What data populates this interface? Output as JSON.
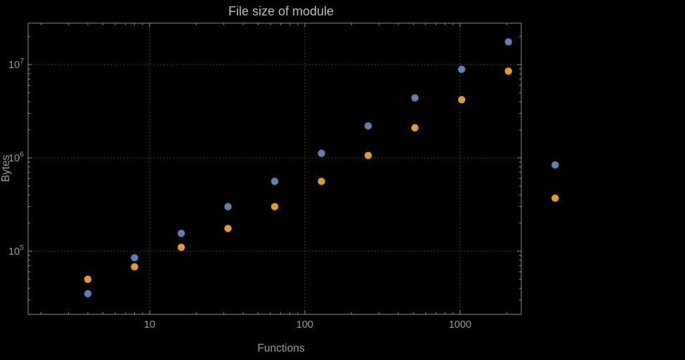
{
  "chart_data": {
    "type": "scatter",
    "title": "File size of module",
    "xlabel": "Functions",
    "ylabel": "Bytes",
    "xscale": "log",
    "yscale": "log",
    "xlim": [
      1.65,
      2480
    ],
    "ylim": [
      21000,
      27800000
    ],
    "x_ticks": [
      10,
      100,
      1000
    ],
    "x_tick_labels": [
      "10",
      "100",
      "1000"
    ],
    "y_ticks": [
      100000,
      1000000,
      10000000
    ],
    "y_tick_labels": [
      "10^5",
      "10^6",
      "10^7"
    ],
    "grid": "dotted",
    "legend_position": "none",
    "style": {
      "background": "#000000",
      "frame_color": "#8c8c8c",
      "grid_color": "#5c5c5c",
      "label_color": "#9a9a9a",
      "title_color": "#b9b9b9",
      "point_radius": 5.2
    },
    "series": [
      {
        "name": "series-1-blue",
        "color": "#5e81b5",
        "x": [
          4,
          8,
          16,
          32,
          64,
          128,
          256,
          512,
          1024,
          2048,
          4096
        ],
        "y": [
          35000,
          85000,
          155000,
          300000,
          560000,
          1120000,
          2200000,
          4400000,
          8900000,
          17500000,
          840000
        ]
      },
      {
        "name": "series-2-orange",
        "color": "#e19c24",
        "x": [
          4,
          8,
          16,
          32,
          64,
          128,
          256,
          512,
          1024,
          2048,
          4096
        ],
        "y": [
          50000,
          68000,
          110000,
          175000,
          300000,
          560000,
          1060000,
          2100000,
          4200000,
          8500000,
          370000
        ]
      }
    ]
  }
}
